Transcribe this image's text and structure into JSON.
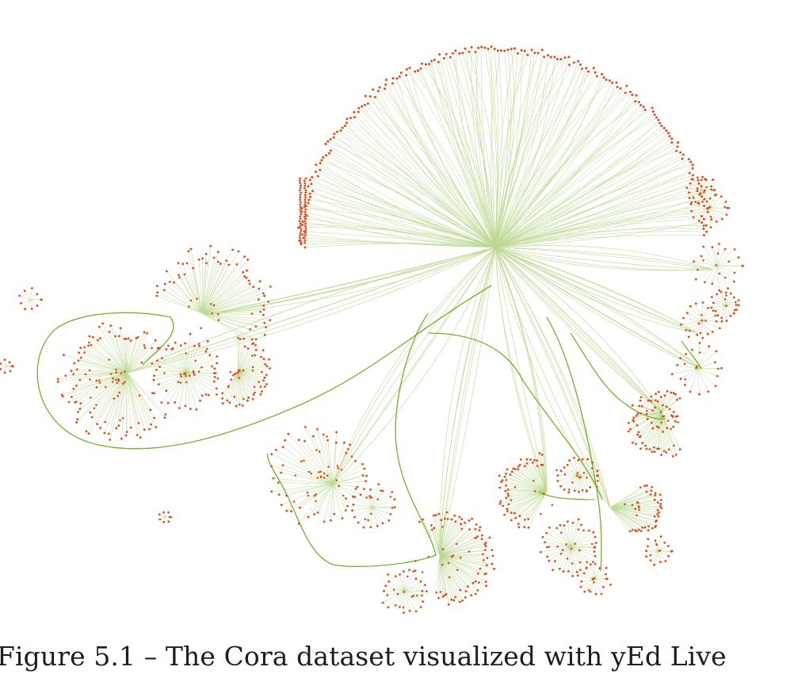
{
  "figure": {
    "caption": "Figure 5.1 – The Cora dataset visualized with yEd Live"
  },
  "colors": {
    "node": "#ea4a17",
    "edge_light": "#bcd991",
    "edge_bundle": "#6aae1b",
    "caption_text": "#1e1e1e"
  }
}
